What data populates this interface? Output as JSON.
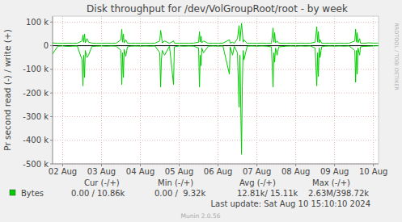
{
  "chart_data": {
    "type": "line",
    "title": "Disk throughput for /dev/VolGroupRoot/root - by week",
    "y_label": "Pr second read (-) / write (+)",
    "watermark": "RRDTOOL / TOBI OETIKER",
    "footer": "Last update: Sat Aug 10 15:10:10 2024",
    "credit": "Munin 2.0.56",
    "grid": true,
    "xlim": [
      2.24,
      10.632
    ],
    "xticks": [
      {
        "value": 2.5,
        "label": "02 Aug"
      },
      {
        "value": 3.5,
        "label": "03 Aug"
      },
      {
        "value": 4.5,
        "label": "04 Aug"
      },
      {
        "value": 5.5,
        "label": "05 Aug"
      },
      {
        "value": 6.5,
        "label": "06 Aug"
      },
      {
        "value": 7.5,
        "label": "07 Aug"
      },
      {
        "value": 8.5,
        "label": "08 Aug"
      },
      {
        "value": 9.5,
        "label": "09 Aug"
      },
      {
        "value": 10.5,
        "label": "10 Aug"
      }
    ],
    "ylim": [
      -500000,
      125000
    ],
    "yticks": [
      {
        "value": 100000,
        "label": "100 k"
      },
      0,
      {
        "value": -100000,
        "label": "-100 k"
      },
      {
        "value": -200000,
        "label": "-200 k"
      },
      {
        "value": -300000,
        "label": "-300 k"
      },
      {
        "value": -400000,
        "label": "-400 k"
      },
      {
        "value": -500000,
        "label": "-500 k"
      }
    ],
    "stats_headers": [
      "Cur (-/+)",
      "Min (-/+)",
      "Avg (-/+)",
      "Max (-/+)"
    ],
    "x": [
      2.24,
      2.375,
      2.5,
      2.625,
      2.75,
      2.875,
      3.0,
      3.021,
      3.042,
      3.063,
      3.083,
      3.125,
      3.167,
      3.25,
      3.375,
      3.5,
      3.625,
      3.75,
      3.875,
      4.0,
      4.021,
      4.042,
      4.063,
      4.083,
      4.125,
      4.167,
      4.25,
      4.375,
      4.5,
      4.625,
      4.75,
      4.875,
      5.0,
      5.021,
      5.042,
      5.063,
      5.125,
      5.25,
      5.354,
      5.375,
      5.5,
      5.625,
      5.75,
      5.875,
      6.0,
      6.021,
      6.042,
      6.063,
      6.083,
      6.125,
      6.25,
      6.375,
      6.5,
      6.625,
      6.792,
      6.813,
      6.875,
      6.917,
      7.0,
      7.042,
      7.063,
      7.104,
      7.125,
      7.146,
      7.167,
      7.25,
      7.375,
      7.5,
      7.625,
      7.75,
      7.875,
      7.917,
      7.938,
      7.958,
      7.979,
      8.021,
      8.063,
      8.25,
      8.375,
      8.5,
      8.625,
      8.75,
      8.875,
      9.0,
      9.042,
      9.063,
      9.083,
      9.104,
      9.125,
      9.167,
      9.25,
      9.375,
      9.5,
      9.625,
      9.75,
      9.875,
      10.021,
      10.042,
      10.063,
      10.083,
      10.104,
      10.146,
      10.167,
      10.25,
      10.375,
      10.5,
      10.583,
      10.625
    ],
    "series": [
      {
        "name": "Bytes",
        "color": "#00cc00",
        "stats": [
          "0.00 / 10.86k",
          "0.00 /  9.32k",
          "12.81k/ 15.11k",
          "2.63M/398.72k"
        ],
        "values": [
          12000,
          10000,
          10000,
          11000,
          10000,
          10500,
          20000,
          45000,
          15000,
          50000,
          12000,
          30000,
          15000,
          11000,
          10000,
          10000,
          11000,
          10000,
          10500,
          25000,
          70000,
          15000,
          50000,
          12000,
          25000,
          11000,
          10000,
          10500,
          10000,
          11000,
          10000,
          10500,
          20000,
          65000,
          45000,
          12000,
          20000,
          10000,
          20000,
          11000,
          10000,
          10500,
          10000,
          11000,
          15000,
          60000,
          15000,
          40000,
          12000,
          20000,
          10000,
          10500,
          10000,
          11000,
          25000,
          11000,
          15000,
          10000,
          30000,
          85000,
          20000,
          95000,
          60000,
          15000,
          25000,
          10000,
          10500,
          10000,
          11000,
          10000,
          10000,
          75000,
          15000,
          55000,
          12000,
          20000,
          11000,
          10000,
          10500,
          10000,
          11000,
          10000,
          10500,
          15000,
          80000,
          15000,
          60000,
          12000,
          25000,
          11000,
          10000,
          10500,
          10000,
          11000,
          10000,
          10500,
          20000,
          70000,
          15000,
          55000,
          12000,
          30000,
          11000,
          10000,
          12000,
          11000,
          11000,
          10860
        ],
        "read_values": [
          -35000,
          -2000,
          -1000,
          -3000,
          -2000,
          -1000,
          -60000,
          -170000,
          -40000,
          -135000,
          -20000,
          -50000,
          -40000,
          -3000,
          -2000,
          -1000,
          -2000,
          -1000,
          -2000,
          -20000,
          -165000,
          -30000,
          -135000,
          -15000,
          -45000,
          -5000,
          -2000,
          -1000,
          -2000,
          -1000,
          -2000,
          -1000,
          -30000,
          -175000,
          -60000,
          -20000,
          -40000,
          -2000,
          -165000,
          -5000,
          -1000,
          -2000,
          -1000,
          -2000,
          -10000,
          -175000,
          -40000,
          -85000,
          -10000,
          -30000,
          -2000,
          -1000,
          -2000,
          -1000,
          -120000,
          -5000,
          -40000,
          -3000,
          -30000,
          -260000,
          -40000,
          -460000,
          -170000,
          -20000,
          -60000,
          -2000,
          -1000,
          -2000,
          -1000,
          -2000,
          -5000,
          -175000,
          -30000,
          -70000,
          -10000,
          -40000,
          -5000,
          -2000,
          -1000,
          -2000,
          -1000,
          -2000,
          -1000,
          -10000,
          -170000,
          -30000,
          -130000,
          -10000,
          -50000,
          -5000,
          -2000,
          -1000,
          -2000,
          -1000,
          -2000,
          -1000,
          -20000,
          -155000,
          -20000,
          -120000,
          -10000,
          -40000,
          -5000,
          -3000,
          -2000,
          -1000,
          0,
          0
        ]
      }
    ]
  }
}
